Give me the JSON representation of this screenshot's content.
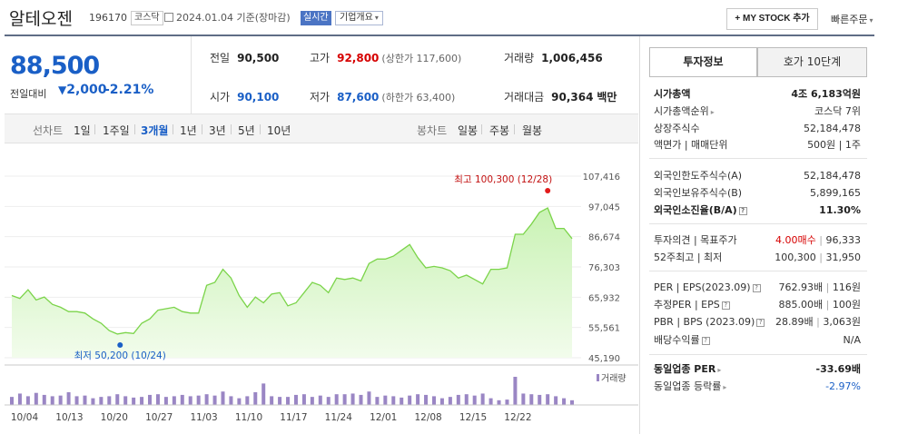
{
  "header": {
    "name": "알테오젠",
    "code": "196170",
    "market": "코스닥",
    "date": "2024.01.04",
    "basis": "기준(장마감)",
    "realtime": "실시간",
    "company_info": "기업개요",
    "mystock_button": "+ MY STOCK 추가",
    "quick_order": "빠른주문"
  },
  "price": {
    "current": "88,500",
    "prev_label": "전일대비",
    "change": "2,000",
    "change_pct": "-2.21%",
    "direction_icon": "down-triangle-icon"
  },
  "stats": {
    "prev_close_label": "전일",
    "prev_close": "90,500",
    "high_label": "고가",
    "high": "92,800",
    "upper_limit": "(상한가 117,600)",
    "volume_label": "거래량",
    "volume": "1,006,456",
    "open_label": "시가",
    "open": "90,100",
    "low_label": "저가",
    "low": "87,600",
    "lower_limit": "(하한가 63,400)",
    "amount_label": "거래대금",
    "amount": "90,364",
    "amount_unit": "백만"
  },
  "controls": {
    "line_label": "선차트",
    "line_periods": [
      "1일",
      "1주일",
      "3개월",
      "1년",
      "3년",
      "5년",
      "10년"
    ],
    "selected": "3개월",
    "candle_label": "봉차트",
    "candle_periods": [
      "일봉",
      "주봉",
      "월봉"
    ]
  },
  "chart_data": {
    "type": "line",
    "y_ticks": [
      "107,416",
      "97,045",
      "86,674",
      "76,303",
      "65,932",
      "55,561",
      "45,190"
    ],
    "ylim": [
      45190,
      107416
    ],
    "x_ticks": [
      "10/04",
      "10/13",
      "10/20",
      "10/27",
      "11/03",
      "11/10",
      "11/17",
      "11/24",
      "12/01",
      "12/08",
      "12/15",
      "12/22"
    ],
    "max_annotation": "최고 100,300 (12/28)",
    "min_annotation": "최저 50,200 (10/24)",
    "volume_label": "거래량",
    "series": [
      {
        "values": [
          66500,
          65500,
          68500,
          65000,
          66000,
          63500,
          62500,
          61000,
          61000,
          60500,
          58500,
          57000,
          54500,
          53300,
          53800,
          53500,
          57000,
          58500,
          61500,
          62000,
          62500,
          61000,
          60500,
          60500,
          70000,
          71000,
          75500,
          72500,
          66500,
          62500,
          66000,
          64000,
          67000,
          67500,
          63000,
          64000,
          67500,
          71000,
          70000,
          67500,
          72500,
          72000,
          72500,
          71500,
          77500,
          79000,
          79000,
          80000,
          82000,
          84000,
          79500,
          76000,
          76500,
          76000,
          75000,
          72500,
          73500,
          72000,
          70500,
          75500,
          75500,
          76000,
          87500,
          87500,
          91000,
          95000,
          96500,
          89500,
          89500,
          86000
        ],
        "volume": [
          12,
          17,
          13,
          18,
          15,
          13,
          14,
          19,
          13,
          14,
          10,
          12,
          13,
          16,
          13,
          11,
          12,
          15,
          16,
          12,
          13,
          15,
          13,
          14,
          16,
          14,
          20,
          13,
          10,
          13,
          19,
          32,
          13,
          12,
          12,
          15,
          16,
          12,
          14,
          12,
          16,
          16,
          17,
          15,
          20,
          12,
          14,
          13,
          11,
          14,
          16,
          15,
          13,
          10,
          12,
          15,
          16,
          14,
          17,
          10,
          7,
          8,
          42,
          17,
          16,
          15,
          16,
          13,
          10,
          7
        ]
      }
    ]
  },
  "panel": {
    "tab_active": "투자정보",
    "tab_inactive": "호가 10단계",
    "rows1": [
      {
        "k": "시가총액",
        "v": "4조 6,183억원",
        "bold": true
      },
      {
        "k": "시가총액순위",
        "v": "코스닥 7위"
      },
      {
        "k": "상장주식수",
        "v": "52,184,478"
      },
      {
        "k": "액면가 | 매매단위",
        "v": "500원 | 1주"
      }
    ],
    "rows2": [
      {
        "k": "외국인한도주식수(A)",
        "v": "52,184,478"
      },
      {
        "k": "외국인보유주식수(B)",
        "v": "5,899,165"
      },
      {
        "k": "외국인소진율(B/A)",
        "v": "11.30%",
        "bold": true
      }
    ],
    "rows3": [
      {
        "k": "투자의견 | 목표주가",
        "v1": "4.00매수",
        "v2": "96,333"
      },
      {
        "k": "52주최고 | 최저",
        "v1": "100,300",
        "v2": "31,950"
      }
    ],
    "rows4": [
      {
        "k": "PER | EPS(2023.09)",
        "v1": "762.93배",
        "v2": "116원"
      },
      {
        "k": "추정PER | EPS",
        "v1": "885.00배",
        "v2": "100원"
      },
      {
        "k": "PBR | BPS (2023.09)",
        "v1": "28.89배",
        "v2": "3,063원"
      },
      {
        "k": "배당수익률",
        "v1": "N/A",
        "v2": ""
      }
    ],
    "rows5": [
      {
        "k": "동일업종 PER",
        "v": "-33.69배",
        "bold": true
      },
      {
        "k": "동일업종 등락률",
        "v": "-2.97%"
      }
    ]
  },
  "colors": {
    "price_blue": "#1a5fc6",
    "price_red": "#d60000",
    "line_green": "#7bd44a",
    "volume_purple": "#9a86c4"
  }
}
